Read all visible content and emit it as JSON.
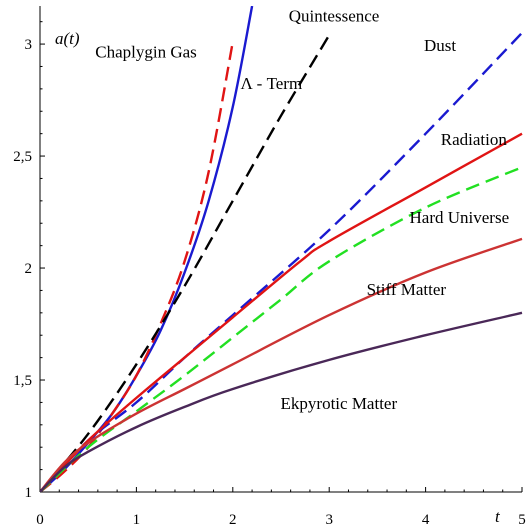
{
  "chart_data": {
    "type": "line",
    "xlabel": "t",
    "ylabel": "a(t)",
    "xlim": [
      0,
      5
    ],
    "ylim": [
      1,
      3.17
    ],
    "xticks": [
      {
        "value": 0,
        "label": "0"
      },
      {
        "value": 1,
        "label": "1"
      },
      {
        "value": 2,
        "label": "2"
      },
      {
        "value": 3,
        "label": "3"
      },
      {
        "value": 4,
        "label": "4"
      },
      {
        "value": 5,
        "label": "5"
      }
    ],
    "yticks": [
      {
        "value": 1,
        "label": "1"
      },
      {
        "value": 1.5,
        "label": "1,5"
      },
      {
        "value": 2,
        "label": "2"
      },
      {
        "value": 2.5,
        "label": "2,5"
      },
      {
        "value": 3,
        "label": "3"
      }
    ],
    "grid": false,
    "series": [
      {
        "name": "Chaplygin Gas",
        "color": "#1a1ad0",
        "style": "solid",
        "points": [
          [
            0,
            1
          ],
          [
            0.25,
            1.1
          ],
          [
            0.5,
            1.22
          ],
          [
            0.75,
            1.35
          ],
          [
            1,
            1.52
          ],
          [
            1.25,
            1.72
          ],
          [
            1.5,
            1.98
          ],
          [
            1.75,
            2.3
          ],
          [
            2,
            2.72
          ],
          [
            2.2,
            3.17
          ]
        ]
      },
      {
        "name": "Λ - Term",
        "color": "#e01414",
        "style": "dashed",
        "points": [
          [
            0,
            1
          ],
          [
            0.25,
            1.09
          ],
          [
            0.5,
            1.2
          ],
          [
            0.75,
            1.35
          ],
          [
            1,
            1.52
          ],
          [
            1.25,
            1.75
          ],
          [
            1.5,
            2.03
          ],
          [
            1.75,
            2.43
          ],
          [
            2,
            3.01
          ]
        ]
      },
      {
        "name": "Quintessence",
        "color": "#000000",
        "style": "dashed",
        "points": [
          [
            0,
            1
          ],
          [
            0.5,
            1.26
          ],
          [
            1,
            1.57
          ],
          [
            1.5,
            1.92
          ],
          [
            2,
            2.3
          ],
          [
            2.5,
            2.68
          ],
          [
            3,
            3.04
          ]
        ]
      },
      {
        "name": "Dust",
        "color": "#1a1ad0",
        "style": "dashed",
        "points": [
          [
            0,
            1
          ],
          [
            0.5,
            1.23
          ],
          [
            1,
            1.4
          ],
          [
            1.5,
            1.6
          ],
          [
            2,
            1.79
          ],
          [
            3,
            2.17
          ],
          [
            4,
            2.6
          ],
          [
            5,
            3.05
          ]
        ]
      },
      {
        "name": "Radiation",
        "color": "#e01414",
        "style": "solid",
        "points": [
          [
            0,
            1
          ],
          [
            0.5,
            1.23
          ],
          [
            1,
            1.42
          ],
          [
            1.5,
            1.6
          ],
          [
            2,
            1.78
          ],
          [
            2.7,
            2.03
          ],
          [
            3,
            2.12
          ],
          [
            4,
            2.36
          ],
          [
            5,
            2.6
          ]
        ]
      },
      {
        "name": "Hard Universe",
        "color": "#22e022",
        "style": "dashed",
        "points": [
          [
            0,
            1
          ],
          [
            0.5,
            1.2
          ],
          [
            1,
            1.36
          ],
          [
            1.5,
            1.52
          ],
          [
            2,
            1.69
          ],
          [
            2.5,
            1.86
          ],
          [
            3,
            2.03
          ],
          [
            4,
            2.27
          ],
          [
            5,
            2.45
          ]
        ]
      },
      {
        "name": "Stiff Matter",
        "color": "#cc3333",
        "style": "solid",
        "points": [
          [
            0,
            1
          ],
          [
            0.25,
            1.13
          ],
          [
            0.5,
            1.22
          ],
          [
            1,
            1.35
          ],
          [
            1.5,
            1.46
          ],
          [
            2,
            1.57
          ],
          [
            3,
            1.79
          ],
          [
            4,
            1.98
          ],
          [
            5,
            2.13
          ]
        ]
      },
      {
        "name": "Ekpyrotic Matter",
        "color": "#4a2858",
        "style": "solid",
        "points": [
          [
            0,
            1
          ],
          [
            0.25,
            1.11
          ],
          [
            0.5,
            1.18
          ],
          [
            1,
            1.29
          ],
          [
            1.5,
            1.38
          ],
          [
            2,
            1.46
          ],
          [
            3,
            1.59
          ],
          [
            4,
            1.7
          ],
          [
            5,
            1.8
          ]
        ]
      }
    ],
    "annotations": [
      {
        "text": "Chaplygin Gas",
        "x": 1.1,
        "y": 2.94
      },
      {
        "text": "Λ - Term",
        "x": 2.4,
        "y": 2.8
      },
      {
        "text": "Quintessence",
        "x": 3.05,
        "y": 3.1
      },
      {
        "text": "Dust",
        "x": 4.15,
        "y": 2.97
      },
      {
        "text": "Radiation",
        "x": 4.5,
        "y": 2.55
      },
      {
        "text": "Hard Universe",
        "x": 4.35,
        "y": 2.2
      },
      {
        "text": "Stiff Matter",
        "x": 3.8,
        "y": 1.88
      },
      {
        "text": "Ekpyrotic Matter",
        "x": 3.1,
        "y": 1.37
      }
    ]
  }
}
